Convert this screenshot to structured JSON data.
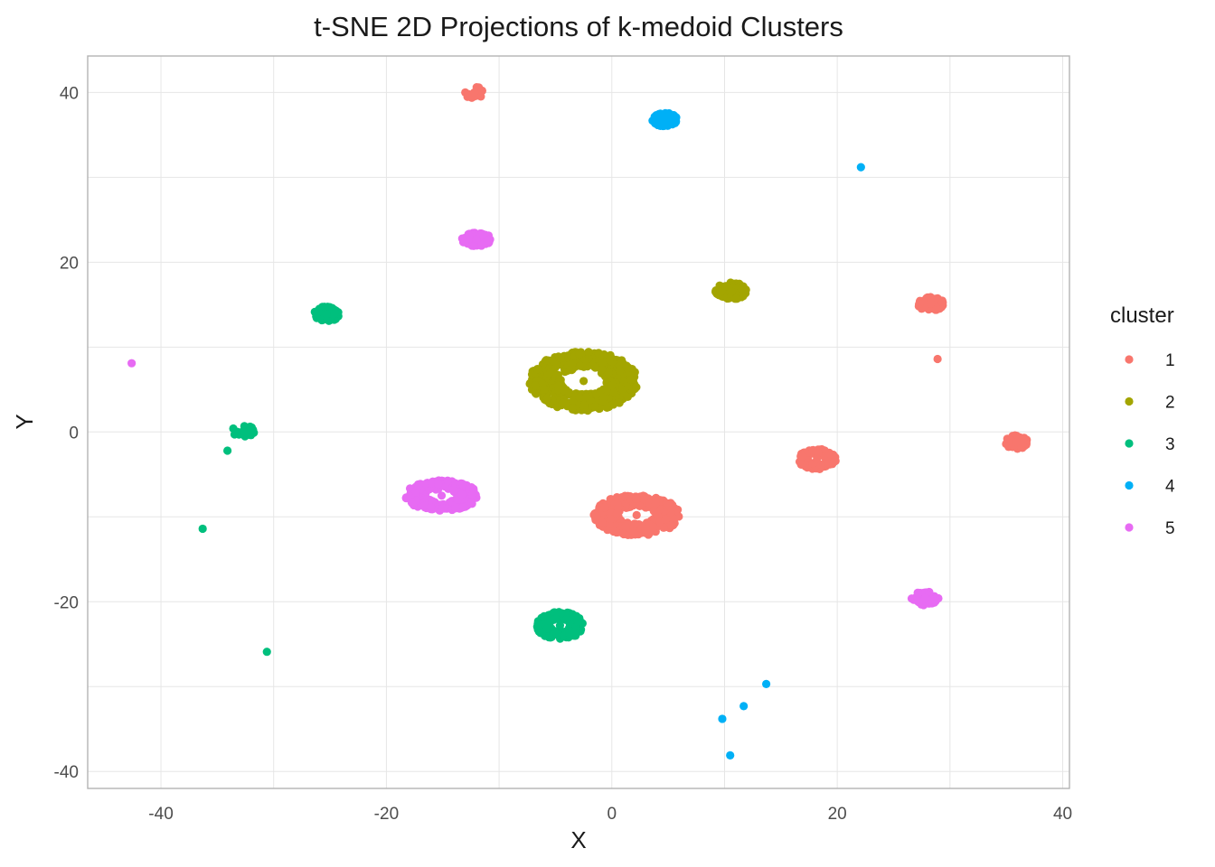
{
  "chart_data": {
    "type": "scatter",
    "title": "t-SNE 2D Projections of k-medoid Clusters",
    "xlabel": "X",
    "ylabel": "Y",
    "xlim": [
      -46.5,
      40.6
    ],
    "ylim": [
      -42.0,
      44.3
    ],
    "xticks": [
      -40,
      -20,
      0,
      20,
      40
    ],
    "yticks": [
      -40,
      -20,
      0,
      20,
      40
    ],
    "grid": true,
    "legend": {
      "title": "cluster",
      "placement": "right"
    },
    "series": [
      {
        "name": "1",
        "color": "#F8766D",
        "points": [
          [
            -12.2,
            40.0
          ],
          [
            -13.0,
            40.0
          ],
          [
            -11.5,
            40.2
          ],
          [
            2.2,
            -9.8
          ],
          [
            18.2,
            -3.2
          ],
          [
            28.3,
            15.1
          ],
          [
            35.9,
            -1.2
          ],
          [
            28.9,
            8.6
          ]
        ]
      },
      {
        "name": "2",
        "color": "#A3A500",
        "points": [
          [
            -2.5,
            6.0
          ],
          [
            10.6,
            16.6
          ]
        ]
      },
      {
        "name": "3",
        "color": "#00BF7D",
        "points": [
          [
            -25.3,
            13.9
          ],
          [
            -32.7,
            0.1
          ],
          [
            -34.1,
            -2.2
          ],
          [
            -36.3,
            -11.4
          ],
          [
            -30.6,
            -25.9
          ],
          [
            -4.6,
            -22.8
          ]
        ]
      },
      {
        "name": "4",
        "color": "#00B0F6",
        "points": [
          [
            4.7,
            36.8
          ],
          [
            22.1,
            31.2
          ],
          [
            13.7,
            -29.7
          ],
          [
            11.7,
            -32.3
          ],
          [
            9.8,
            -33.8
          ],
          [
            10.5,
            -38.1
          ]
        ]
      },
      {
        "name": "5",
        "color": "#E76BF3",
        "points": [
          [
            -12.0,
            22.7
          ],
          [
            -42.6,
            8.1
          ],
          [
            -15.1,
            -7.5
          ],
          [
            27.8,
            -19.6
          ]
        ]
      }
    ],
    "clusters": [
      {
        "series": "1",
        "cx": -12.2,
        "cy": 40.0,
        "rx": 0.9,
        "ry": 0.7,
        "n": 12
      },
      {
        "series": "1",
        "cx": 2.2,
        "cy": -9.8,
        "rx": 3.8,
        "ry": 2.4,
        "n": 400
      },
      {
        "series": "1",
        "cx": 18.2,
        "cy": -3.2,
        "rx": 1.7,
        "ry": 1.2,
        "n": 130
      },
      {
        "series": "1",
        "cx": 28.3,
        "cy": 15.1,
        "rx": 1.2,
        "ry": 0.8,
        "n": 80
      },
      {
        "series": "1",
        "cx": 35.9,
        "cy": -1.2,
        "rx": 1.0,
        "ry": 0.8,
        "n": 60
      },
      {
        "series": "2",
        "cx": -2.5,
        "cy": 6.0,
        "rx": 4.8,
        "ry": 3.5,
        "n": 500
      },
      {
        "series": "2",
        "cx": 10.6,
        "cy": 16.6,
        "rx": 1.4,
        "ry": 1.0,
        "n": 90
      },
      {
        "series": "3",
        "cx": -25.3,
        "cy": 13.9,
        "rx": 1.1,
        "ry": 0.9,
        "n": 70
      },
      {
        "series": "3",
        "cx": -32.7,
        "cy": 0.1,
        "rx": 1.0,
        "ry": 0.7,
        "n": 25
      },
      {
        "series": "3",
        "cx": -4.6,
        "cy": -22.8,
        "rx": 2.1,
        "ry": 1.6,
        "n": 220
      },
      {
        "series": "4",
        "cx": 4.7,
        "cy": 36.8,
        "rx": 1.1,
        "ry": 0.8,
        "n": 70
      },
      {
        "series": "5",
        "cx": -12.0,
        "cy": 22.7,
        "rx": 1.3,
        "ry": 0.8,
        "n": 80
      },
      {
        "series": "5",
        "cx": -15.1,
        "cy": -7.5,
        "rx": 3.2,
        "ry": 1.8,
        "n": 300
      },
      {
        "series": "5",
        "cx": 27.8,
        "cy": -19.6,
        "rx": 1.2,
        "ry": 0.8,
        "n": 70
      }
    ]
  }
}
